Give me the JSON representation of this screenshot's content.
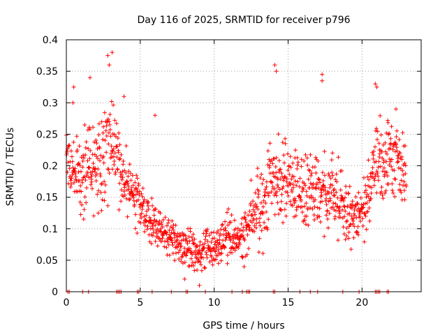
{
  "chart_data": {
    "type": "scatter",
    "title": "Day 116 of 2025, SRMTID for receiver p796",
    "xlabel": "GPS time / hours",
    "ylabel": "SRMTID / TECUs",
    "xlim": [
      0,
      24
    ],
    "ylim": [
      0,
      0.4
    ],
    "xticks": [
      0,
      5,
      10,
      15,
      20
    ],
    "xtick_labels": [
      "0",
      "5",
      "10",
      "15",
      "20"
    ],
    "yticks": [
      0,
      0.05,
      0.1,
      0.15,
      0.2,
      0.25,
      0.3,
      0.35,
      0.4
    ],
    "ytick_labels": [
      "0",
      "0.05",
      "0.1",
      "0.15",
      "0.2",
      "0.25",
      "0.3",
      "0.35",
      "0.4"
    ],
    "grid": true,
    "marker": "plus",
    "color": "#ff0000",
    "envelope": {
      "description": "Approximate typical SRMTID level (TECU) vs GPS hour; points scatter around this",
      "hours": [
        0,
        1,
        2,
        3,
        4,
        5,
        6,
        7,
        8,
        9,
        10,
        11,
        12,
        12.5,
        13,
        14,
        15,
        16,
        17,
        18,
        19,
        20,
        21,
        22,
        23
      ],
      "level": [
        0.21,
        0.18,
        0.2,
        0.23,
        0.17,
        0.14,
        0.1,
        0.085,
        0.07,
        0.06,
        0.07,
        0.09,
        0.08,
        0.12,
        0.13,
        0.18,
        0.17,
        0.16,
        0.16,
        0.15,
        0.13,
        0.12,
        0.2,
        0.22,
        0.19
      ],
      "spread": [
        0.04,
        0.05,
        0.06,
        0.07,
        0.05,
        0.03,
        0.03,
        0.025,
        0.025,
        0.025,
        0.03,
        0.03,
        0.03,
        0.04,
        0.05,
        0.06,
        0.05,
        0.05,
        0.05,
        0.05,
        0.04,
        0.04,
        0.06,
        0.05,
        0.05
      ]
    },
    "peaks": [
      {
        "x": 2.8,
        "y": 0.375
      },
      {
        "x": 3.1,
        "y": 0.38
      },
      {
        "x": 2.9,
        "y": 0.36
      },
      {
        "x": 1.6,
        "y": 0.34
      },
      {
        "x": 0.5,
        "y": 0.325
      },
      {
        "x": 0.45,
        "y": 0.3
      },
      {
        "x": 3.9,
        "y": 0.31
      },
      {
        "x": 6.0,
        "y": 0.28
      },
      {
        "x": 14.1,
        "y": 0.36
      },
      {
        "x": 14.2,
        "y": 0.35
      },
      {
        "x": 17.3,
        "y": 0.345
      },
      {
        "x": 17.3,
        "y": 0.335
      },
      {
        "x": 20.9,
        "y": 0.33
      },
      {
        "x": 21.0,
        "y": 0.325
      },
      {
        "x": 22.3,
        "y": 0.29
      },
      {
        "x": 9.0,
        "y": 0.01
      },
      {
        "x": 8.0,
        "y": 0.02
      }
    ],
    "zero_points_x": [
      0.1,
      0.2,
      1.1,
      1.5,
      3.4,
      3.5,
      3.6,
      3.7,
      4.8,
      4.9,
      5.8,
      7.1,
      8.1,
      8.2,
      9.4,
      11.2,
      11.9,
      12.2,
      12.3,
      12.4,
      14.0,
      14.1,
      15.8,
      16.5,
      17.0,
      18.7,
      19.8,
      20.9,
      21.0,
      21.1,
      21.2,
      21.7,
      21.8
    ]
  }
}
